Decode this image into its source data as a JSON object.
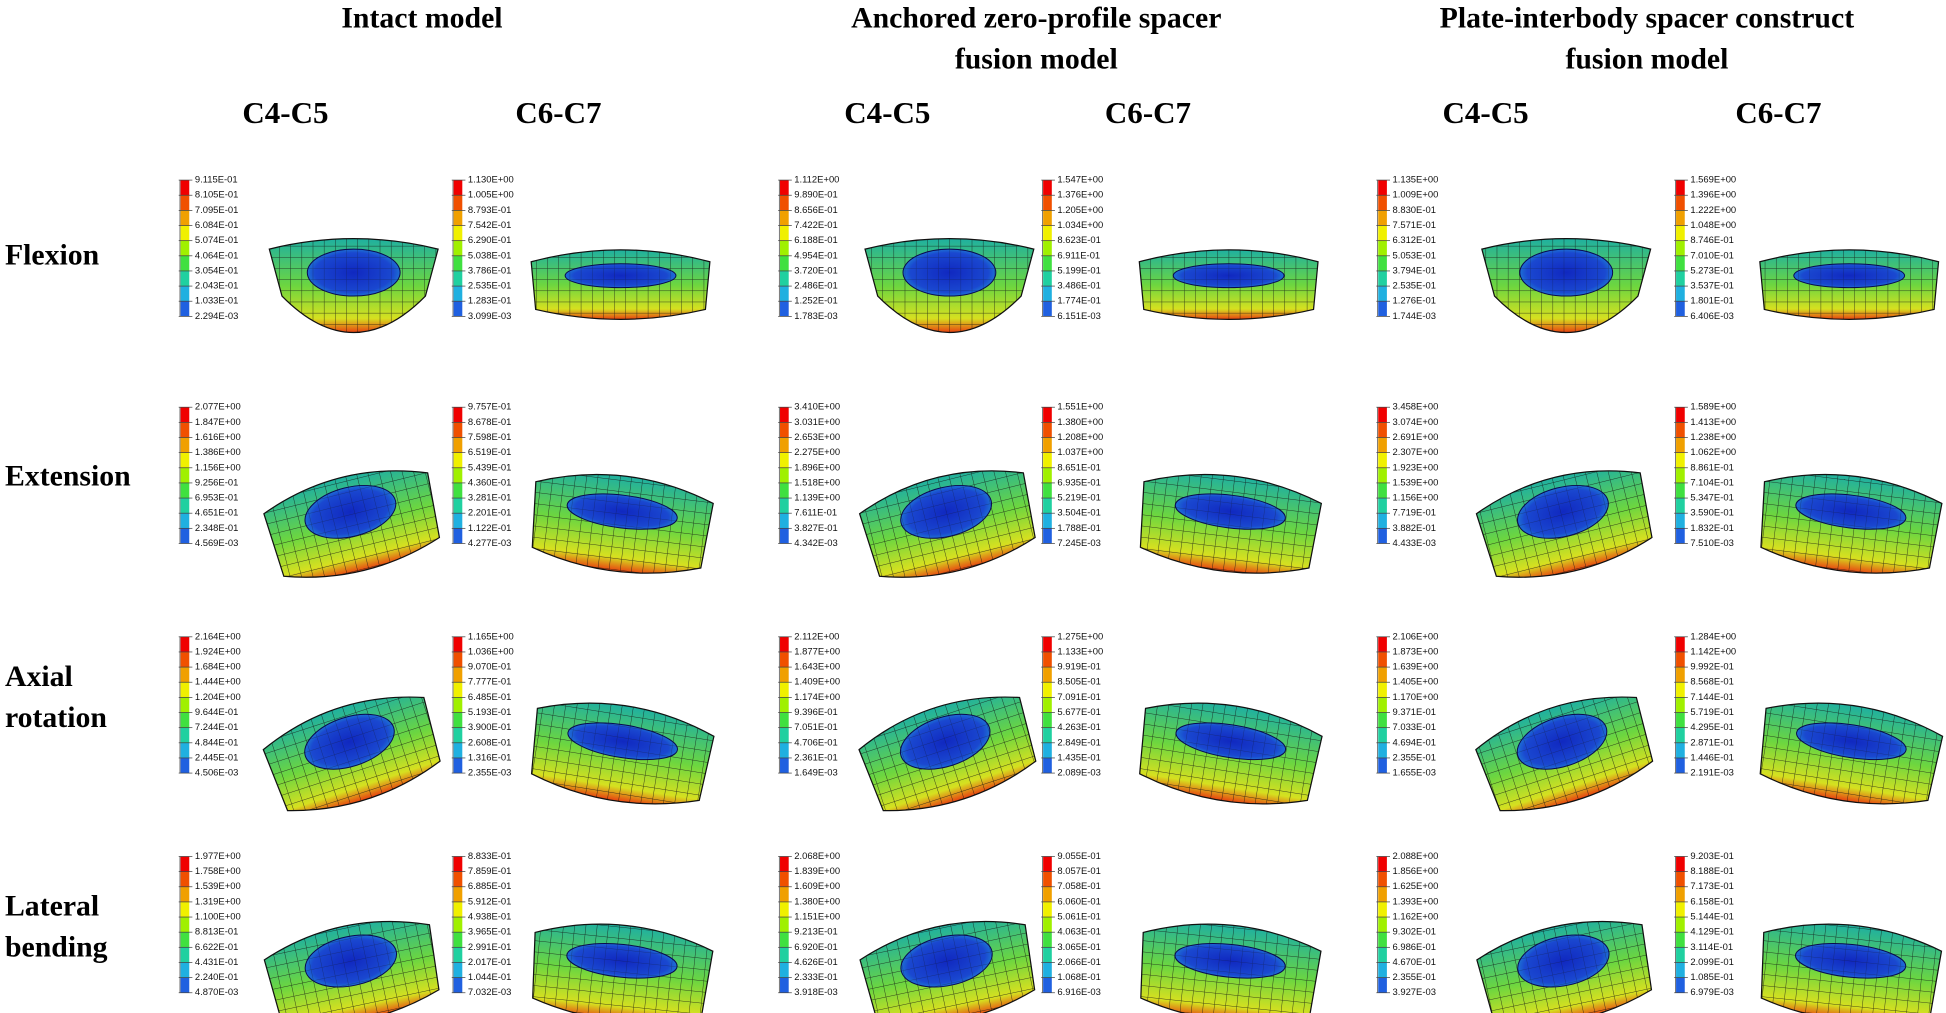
{
  "header": {
    "groups": [
      {
        "title_lines": [
          "Intact model"
        ]
      },
      {
        "title_lines": [
          "Anchored zero-profile spacer",
          "fusion model"
        ]
      },
      {
        "title_lines": [
          "Plate-interbody spacer construct",
          "fusion model"
        ]
      }
    ]
  },
  "columns": [
    "C4-C5",
    "C6-C7",
    "C4-C5",
    "C6-C7",
    "C4-C5",
    "C6-C7"
  ],
  "rows": [
    {
      "label_lines": [
        "Flexion"
      ],
      "panels": [
        {
          "legend": [
            "9.115E-01",
            "8.105E-01",
            "7.095E-01",
            "6.084E-01",
            "5.074E-01",
            "4.064E-01",
            "3.054E-01",
            "2.043E-01",
            "1.033E-01",
            "2.294E-03"
          ]
        },
        {
          "legend": [
            "1.130E+00",
            "1.005E+00",
            "8.793E-01",
            "7.542E-01",
            "6.290E-01",
            "5.038E-01",
            "3.786E-01",
            "2.535E-01",
            "1.283E-01",
            "3.099E-03"
          ]
        },
        {
          "legend": [
            "1.112E+00",
            "9.890E-01",
            "8.656E-01",
            "7.422E-01",
            "6.188E-01",
            "4.954E-01",
            "3.720E-01",
            "2.486E-01",
            "1.252E-01",
            "1.783E-03"
          ]
        },
        {
          "legend": [
            "1.547E+00",
            "1.376E+00",
            "1.205E+00",
            "1.034E+00",
            "8.623E-01",
            "6.911E-01",
            "5.199E-01",
            "3.486E-01",
            "1.774E-01",
            "6.151E-03"
          ]
        },
        {
          "legend": [
            "1.135E+00",
            "1.009E+00",
            "8.830E-01",
            "7.571E-01",
            "6.312E-01",
            "5.053E-01",
            "3.794E-01",
            "2.535E-01",
            "1.276E-01",
            "1.744E-03"
          ]
        },
        {
          "legend": [
            "1.569E+00",
            "1.396E+00",
            "1.222E+00",
            "1.048E+00",
            "8.746E-01",
            "7.010E-01",
            "5.273E-01",
            "3.537E-01",
            "1.801E-01",
            "6.406E-03"
          ]
        }
      ]
    },
    {
      "label_lines": [
        "Extension"
      ],
      "panels": [
        {
          "legend": [
            "2.077E+00",
            "1.847E+00",
            "1.616E+00",
            "1.386E+00",
            "1.156E+00",
            "9.256E-01",
            "6.953E-01",
            "4.651E-01",
            "2.348E-01",
            "4.569E-03"
          ]
        },
        {
          "legend": [
            "9.757E-01",
            "8.678E-01",
            "7.598E-01",
            "6.519E-01",
            "5.439E-01",
            "4.360E-01",
            "3.281E-01",
            "2.201E-01",
            "1.122E-01",
            "4.277E-03"
          ]
        },
        {
          "legend": [
            "3.410E+00",
            "3.031E+00",
            "2.653E+00",
            "2.275E+00",
            "1.896E+00",
            "1.518E+00",
            "1.139E+00",
            "7.611E-01",
            "3.827E-01",
            "4.342E-03"
          ]
        },
        {
          "legend": [
            "1.551E+00",
            "1.380E+00",
            "1.208E+00",
            "1.037E+00",
            "8.651E-01",
            "6.935E-01",
            "5.219E-01",
            "3.504E-01",
            "1.788E-01",
            "7.245E-03"
          ]
        },
        {
          "legend": [
            "3.458E+00",
            "3.074E+00",
            "2.691E+00",
            "2.307E+00",
            "1.923E+00",
            "1.539E+00",
            "1.156E+00",
            "7.719E-01",
            "3.882E-01",
            "4.433E-03"
          ]
        },
        {
          "legend": [
            "1.589E+00",
            "1.413E+00",
            "1.238E+00",
            "1.062E+00",
            "8.861E-01",
            "7.104E-01",
            "5.347E-01",
            "3.590E-01",
            "1.832E-01",
            "7.510E-03"
          ]
        }
      ]
    },
    {
      "label_lines": [
        "Axial",
        "rotation"
      ],
      "panels": [
        {
          "legend": [
            "2.164E+00",
            "1.924E+00",
            "1.684E+00",
            "1.444E+00",
            "1.204E+00",
            "9.644E-01",
            "7.244E-01",
            "4.844E-01",
            "2.445E-01",
            "4.506E-03"
          ]
        },
        {
          "legend": [
            "1.165E+00",
            "1.036E+00",
            "9.070E-01",
            "7.777E-01",
            "6.485E-01",
            "5.193E-01",
            "3.900E-01",
            "2.608E-01",
            "1.316E-01",
            "2.355E-03"
          ]
        },
        {
          "legend": [
            "2.112E+00",
            "1.877E+00",
            "1.643E+00",
            "1.409E+00",
            "1.174E+00",
            "9.396E-01",
            "7.051E-01",
            "4.706E-01",
            "2.361E-01",
            "1.649E-03"
          ]
        },
        {
          "legend": [
            "1.275E+00",
            "1.133E+00",
            "9.919E-01",
            "8.505E-01",
            "7.091E-01",
            "5.677E-01",
            "4.263E-01",
            "2.849E-01",
            "1.435E-01",
            "2.089E-03"
          ]
        },
        {
          "legend": [
            "2.106E+00",
            "1.873E+00",
            "1.639E+00",
            "1.405E+00",
            "1.170E+00",
            "9.371E-01",
            "7.033E-01",
            "4.694E-01",
            "2.355E-01",
            "1.655E-03"
          ]
        },
        {
          "legend": [
            "1.284E+00",
            "1.142E+00",
            "9.992E-01",
            "8.568E-01",
            "7.144E-01",
            "5.719E-01",
            "4.295E-01",
            "2.871E-01",
            "1.446E-01",
            "2.191E-03"
          ]
        }
      ]
    },
    {
      "label_lines": [
        "Lateral",
        "bending"
      ],
      "panels": [
        {
          "legend": [
            "1.977E+00",
            "1.758E+00",
            "1.539E+00",
            "1.319E+00",
            "1.100E+00",
            "8.813E-01",
            "6.622E-01",
            "4.431E-01",
            "2.240E-01",
            "4.870E-03"
          ]
        },
        {
          "legend": [
            "8.833E-01",
            "7.859E-01",
            "6.885E-01",
            "5.912E-01",
            "4.938E-01",
            "3.965E-01",
            "2.991E-01",
            "2.017E-01",
            "1.044E-01",
            "7.032E-03"
          ]
        },
        {
          "legend": [
            "2.068E+00",
            "1.839E+00",
            "1.609E+00",
            "1.380E+00",
            "1.151E+00",
            "9.213E-01",
            "6.920E-01",
            "4.626E-01",
            "2.333E-01",
            "3.918E-03"
          ]
        },
        {
          "legend": [
            "9.055E-01",
            "8.057E-01",
            "7.058E-01",
            "6.060E-01",
            "5.061E-01",
            "4.063E-01",
            "3.065E-01",
            "2.066E-01",
            "1.068E-01",
            "6.916E-03"
          ]
        },
        {
          "legend": [
            "2.088E+00",
            "1.856E+00",
            "1.625E+00",
            "1.393E+00",
            "1.162E+00",
            "9.302E-01",
            "6.986E-01",
            "4.670E-01",
            "2.355E-01",
            "3.927E-03"
          ]
        },
        {
          "legend": [
            "9.203E-01",
            "8.188E-01",
            "7.173E-01",
            "6.158E-01",
            "5.144E-01",
            "4.129E-01",
            "3.114E-01",
            "2.099E-01",
            "1.085E-01",
            "6.979E-03"
          ]
        }
      ]
    }
  ]
}
